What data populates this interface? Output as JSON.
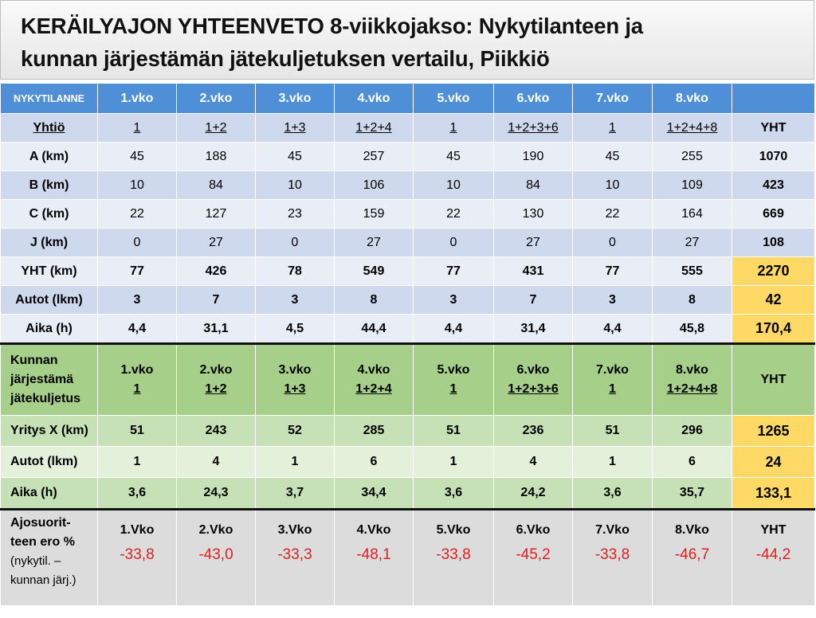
{
  "title": {
    "line1": "KERÄILYAJON YHTEENVETO 8-viikkojakso: Nykytilanteen ja",
    "line2": "kunnan järjestämän jätekuljetuksen vertailu, Piikkiö"
  },
  "current": {
    "header": {
      "label": "NYKYTILANNE",
      "weeks": [
        "1.vko",
        "2.vko",
        "3.vko",
        "4.vko",
        "5.vko",
        "6.vko",
        "7.vko",
        "8.vko"
      ],
      "total": ""
    },
    "company_row": {
      "label": "Yhtiö",
      "values": [
        "1",
        "1+2",
        "1+3",
        "1+2+4",
        "1",
        "1+2+3+6",
        "1",
        "1+2+4+8"
      ],
      "total": "YHT"
    },
    "rows": [
      {
        "label": "A (km)",
        "values": [
          "45",
          "188",
          "45",
          "257",
          "45",
          "190",
          "45",
          "255"
        ],
        "total": "1070"
      },
      {
        "label": "B (km)",
        "values": [
          "10",
          "84",
          "10",
          "106",
          "10",
          "84",
          "10",
          "109"
        ],
        "total": "423"
      },
      {
        "label": "C (km)",
        "values": [
          "22",
          "127",
          "23",
          "159",
          "22",
          "130",
          "22",
          "164"
        ],
        "total": "669"
      },
      {
        "label": "J (km)",
        "values": [
          "0",
          "27",
          "0",
          "27",
          "0",
          "27",
          "0",
          "27"
        ],
        "total": "108"
      },
      {
        "label": "YHT (km)",
        "values": [
          "77",
          "426",
          "78",
          "549",
          "77",
          "431",
          "77",
          "555"
        ],
        "total": "2270"
      },
      {
        "label": "Autot (lkm)",
        "values": [
          "3",
          "7",
          "3",
          "8",
          "3",
          "7",
          "3",
          "8"
        ],
        "total": "42"
      },
      {
        "label": "Aika (h)",
        "values": [
          "4,4",
          "31,1",
          "4,5",
          "44,4",
          "4,4",
          "31,4",
          "4,4",
          "45,8"
        ],
        "total": "170,4"
      }
    ]
  },
  "municipal": {
    "header": {
      "label_lines": [
        "Kunnan",
        "järjestämä",
        "jätekuljetus"
      ],
      "weeks": [
        "1.vko",
        "2.vko",
        "3.vko",
        "4.vko",
        "5.vko",
        "6.vko",
        "7.vko",
        "8.vko"
      ],
      "companies": [
        "1",
        "1+2",
        "1+3",
        "1+2+4",
        "1",
        "1+2+3+6",
        "1",
        "1+2+4+8"
      ],
      "total": "YHT"
    },
    "rows": [
      {
        "label": "Yritys X (km)",
        "values": [
          "51",
          "243",
          "52",
          "285",
          "51",
          "236",
          "51",
          "296"
        ],
        "total": "1265"
      },
      {
        "label": "Autot (lkm)",
        "values": [
          "1",
          "4",
          "1",
          "6",
          "1",
          "4",
          "1",
          "6"
        ],
        "total": "24"
      },
      {
        "label": "Aika (h)",
        "values": [
          "3,6",
          "24,3",
          "3,7",
          "34,4",
          "3,6",
          "24,2",
          "3,6",
          "35,7"
        ],
        "total": "133,1"
      }
    ]
  },
  "difference": {
    "label_lines": [
      "Ajosuorit-",
      "teen ero %"
    ],
    "note_lines": [
      "(nykytil. –",
      "kunnan järj.)"
    ],
    "weeks": [
      "1.Vko",
      "2.Vko",
      "3.Vko",
      "4.Vko",
      "5.Vko",
      "6.Vko",
      "7.Vko",
      "8.Vko",
      "YHT"
    ],
    "values": [
      "-33,8",
      "-43,0",
      "-33,3",
      "-48,1",
      "-33,8",
      "-45,2",
      "-33,8",
      "-46,7",
      "-44,2"
    ]
  },
  "colors": {
    "header_blue": "#4f8fd8",
    "row_blue_dark": "#cfd9ed",
    "row_blue_light": "#e8edf6",
    "total_gold": "#ffd966",
    "green_header": "#a6cf8a",
    "green_dark": "#c7e1b6",
    "green_light": "#e3f0da",
    "diff_gray": "#dcdcdc",
    "negative_red": "#e02020"
  }
}
